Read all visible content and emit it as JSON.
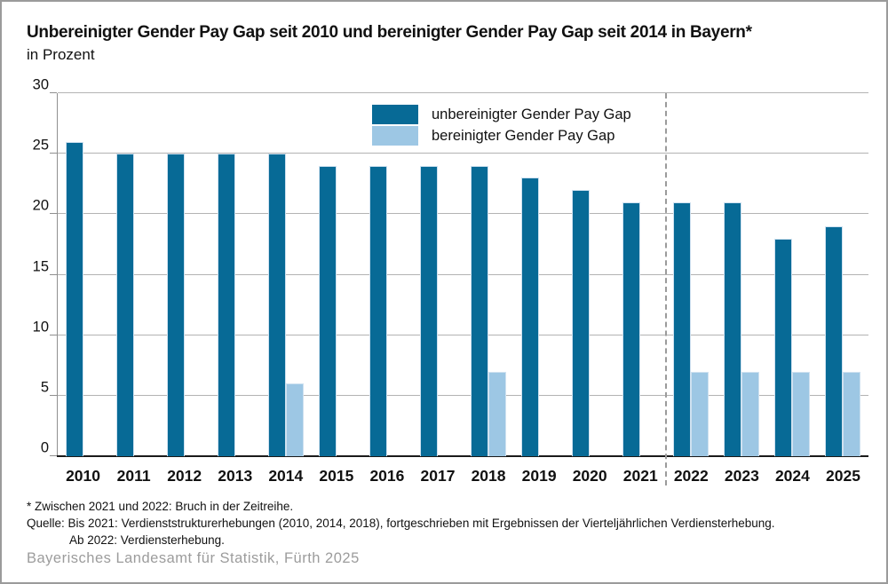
{
  "header": {
    "title": "Unbereinigter Gender Pay Gap seit 2010 und bereinigter Gender Pay Gap seit 2014 in Bayern*",
    "subtitle": "in Prozent"
  },
  "legend": {
    "items": [
      {
        "label": "unbereinigter Gender Pay Gap",
        "color": "#076a96"
      },
      {
        "label": "bereinigter Gender Pay Gap",
        "color": "#9dc7e4"
      }
    ]
  },
  "chart_data": {
    "type": "bar",
    "title": "Unbereinigter Gender Pay Gap seit 2010 und bereinigter Gender Pay Gap seit 2014 in Bayern*",
    "subtitle": "in Prozent",
    "xlabel": "",
    "ylabel": "Prozent",
    "ylim": [
      0,
      30
    ],
    "yticks": [
      0,
      5,
      10,
      15,
      20,
      25,
      30
    ],
    "grid": true,
    "legend_position": "top-center",
    "categories": [
      "2010",
      "2011",
      "2012",
      "2013",
      "2014",
      "2015",
      "2016",
      "2017",
      "2018",
      "2019",
      "2020",
      "2021",
      "2022",
      "2023",
      "2024",
      "2025"
    ],
    "series": [
      {
        "name": "unbereinigter Gender Pay Gap",
        "color": "#076a96",
        "values": [
          26,
          25,
          25,
          25,
          25,
          24,
          24,
          24,
          24,
          23,
          22,
          21,
          21,
          21,
          18,
          19
        ]
      },
      {
        "name": "bereinigter Gender Pay Gap",
        "color": "#9dc7e4",
        "values": [
          null,
          null,
          null,
          null,
          6,
          null,
          null,
          null,
          7,
          null,
          null,
          null,
          7,
          7,
          7,
          7
        ]
      }
    ],
    "annotations": {
      "break_line_after_category": "2021",
      "break_line_style": "dashed-gray"
    }
  },
  "colors": {
    "grid": "#b3b3b3",
    "axis": "#1a1a1a",
    "break_line": "#9b9b9b",
    "footer_text": "#9c9c9c",
    "border": "#9b9b9b"
  },
  "footnotes": {
    "line1": "* Zwischen 2021 und 2022: Bruch in der Zeitreihe.",
    "line2": "Quelle: Bis 2021: Verdienststrukturerhebungen (2010, 2014, 2018), fortgeschrieben mit Ergebnissen der Vierteljährlichen Verdiensterhebung.",
    "line3": "Ab 2022: Verdiensterhebung."
  },
  "footer": {
    "publisher": "Bayerisches Landesamt für Statistik, Fürth 2025"
  }
}
